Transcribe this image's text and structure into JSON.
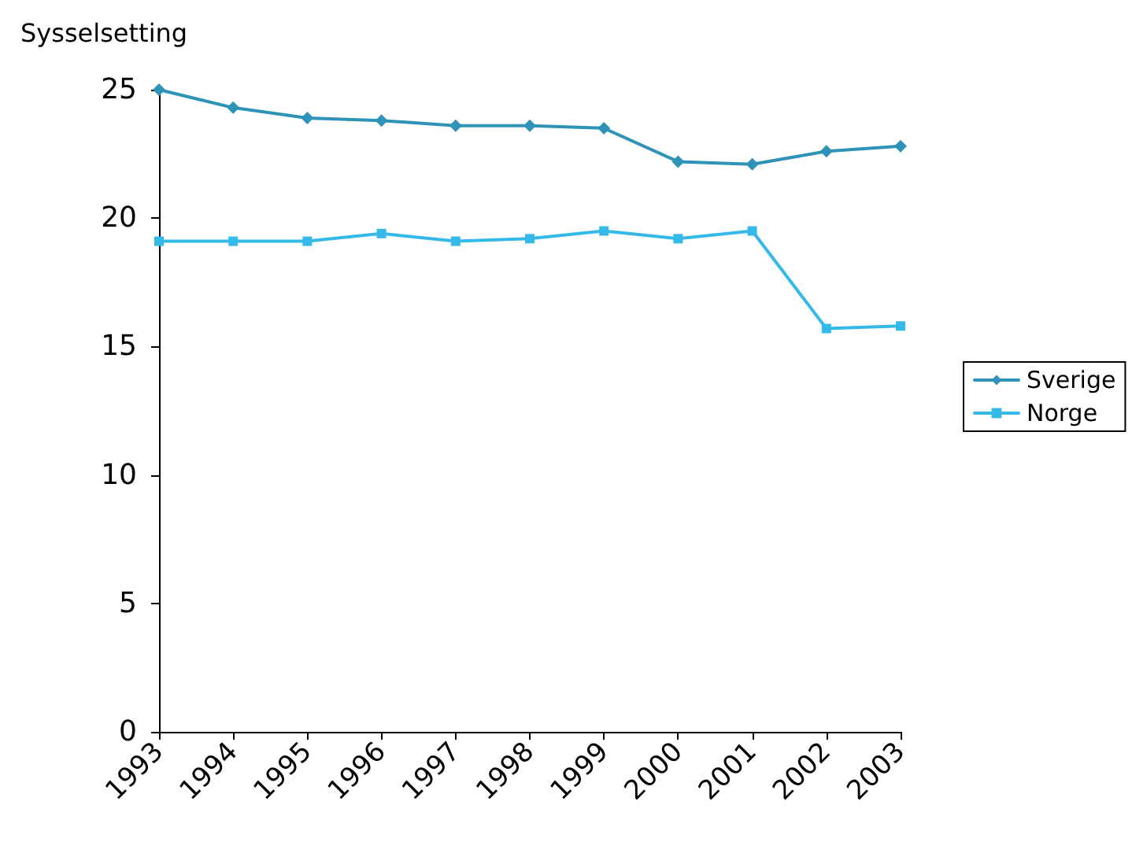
{
  "chart_data": {
    "type": "line",
    "ylabel": "Sysselsetting",
    "categories": [
      "1993",
      "1994",
      "1995",
      "1996",
      "1997",
      "1998",
      "1999",
      "2000",
      "2001",
      "2002",
      "2003"
    ],
    "series": [
      {
        "name": "Sverige",
        "color": "#2f93b8",
        "marker": "diamond",
        "values": [
          25.0,
          24.3,
          23.9,
          23.8,
          23.6,
          23.6,
          23.5,
          22.2,
          22.1,
          22.6,
          22.8
        ]
      },
      {
        "name": "Norge",
        "color": "#35b9e9",
        "marker": "square",
        "values": [
          19.1,
          19.1,
          19.1,
          19.4,
          19.1,
          19.2,
          19.5,
          19.2,
          19.5,
          15.7,
          15.8
        ]
      }
    ],
    "ylim": [
      0,
      25
    ],
    "yticks": [
      0,
      5,
      10,
      15,
      20,
      25
    ],
    "grid": false,
    "legend": "right"
  }
}
